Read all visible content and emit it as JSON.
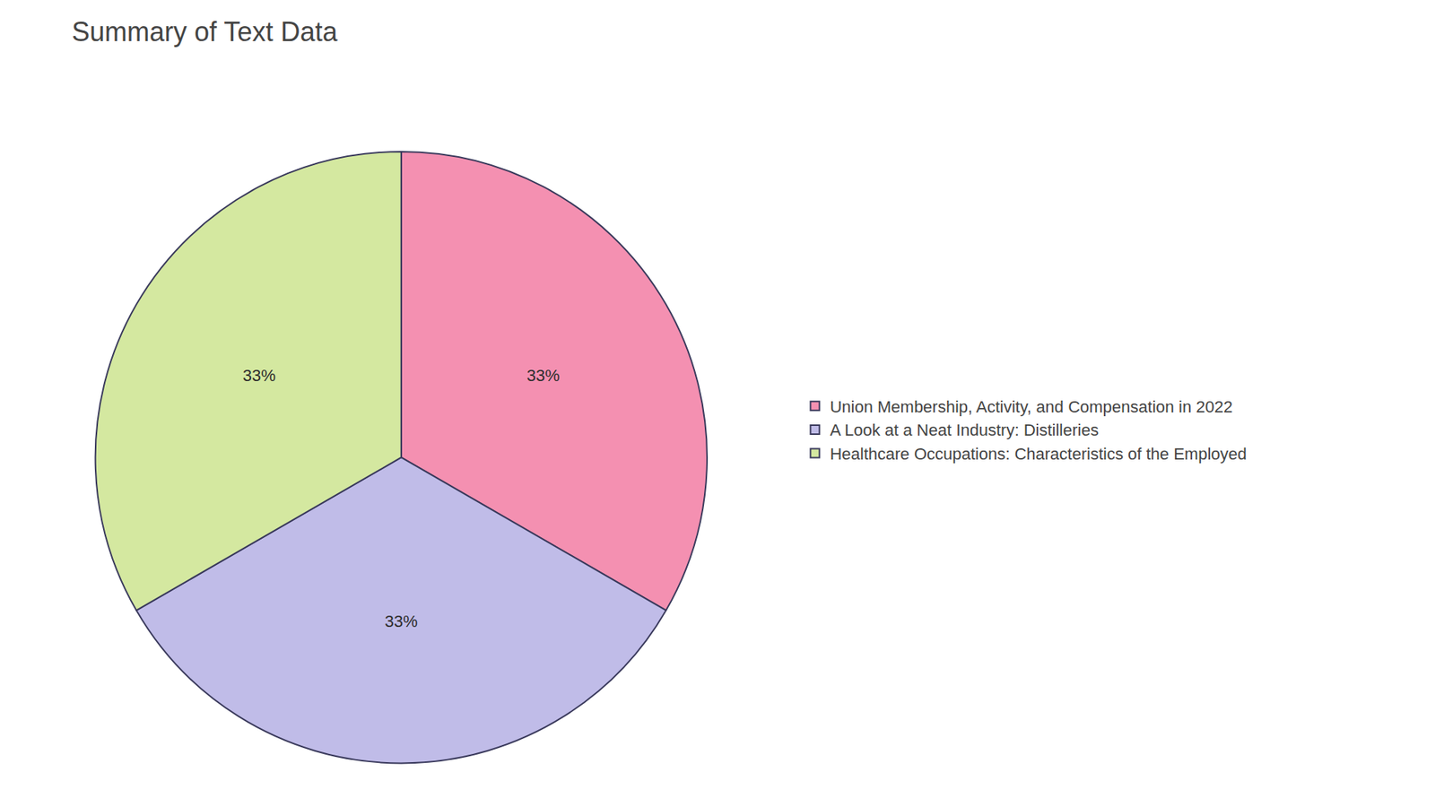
{
  "chart_data": {
    "type": "pie",
    "title": "Summary of Text Data",
    "categories": [
      "Union Membership, Activity, and Compensation in 2022",
      "A Look at a Neat Industry: Distilleries",
      "Healthcare Occupations: Characteristics of the Employed"
    ],
    "values": [
      33,
      33,
      33
    ],
    "value_labels": [
      "33%",
      "33%",
      "33%"
    ],
    "colors": [
      "#F490B1",
      "#C0BCE8",
      "#D4E8A0"
    ],
    "data_labels": true,
    "legend": "right"
  }
}
